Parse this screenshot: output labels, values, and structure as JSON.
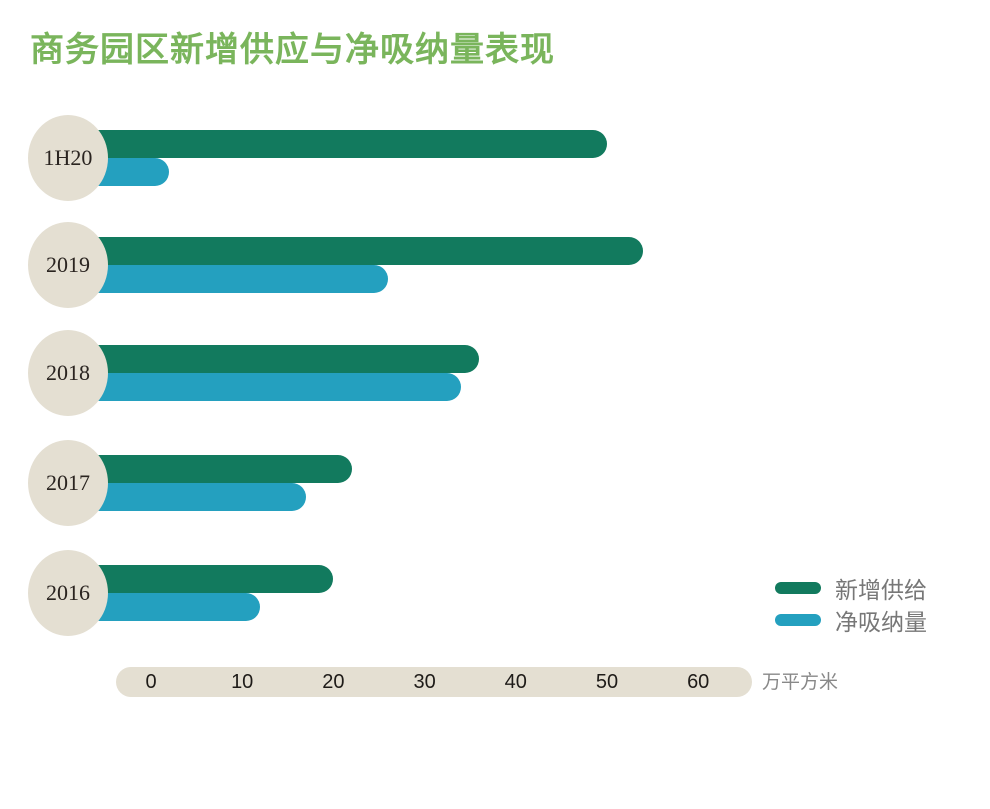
{
  "title": "商务园区新增供应与净吸纳量表现",
  "colors": {
    "title": "#7ab55c",
    "supply": "#127a5e",
    "absorption": "#24a0bf",
    "circle": "#e4dfd2"
  },
  "legend": [
    {
      "label": "新增供给",
      "color": "#127a5e"
    },
    {
      "label": "净吸纳量",
      "color": "#24a0bf"
    }
  ],
  "axis": {
    "ticks": [
      "0",
      "10",
      "20",
      "30",
      "40",
      "50",
      "60"
    ],
    "unit": "万平方米"
  },
  "rows": [
    {
      "label": "1H20"
    },
    {
      "label": "2019"
    },
    {
      "label": "2018"
    },
    {
      "label": "2017"
    },
    {
      "label": "2016"
    }
  ],
  "chart_data": {
    "type": "bar",
    "orientation": "horizontal",
    "title": "商务园区新增供应与净吸纳量表现",
    "categories": [
      "1H20",
      "2019",
      "2018",
      "2017",
      "2016"
    ],
    "series": [
      {
        "name": "新增供给",
        "values": [
          50,
          54,
          36,
          22,
          20
        ]
      },
      {
        "name": "净吸纳量",
        "values": [
          2,
          26,
          34,
          17,
          12
        ]
      }
    ],
    "xlabel": "万平方米",
    "ylabel": "",
    "xlim": [
      0,
      60
    ],
    "xticks": [
      0,
      10,
      20,
      30,
      40,
      50,
      60
    ],
    "grid": false,
    "legend_position": "right"
  }
}
